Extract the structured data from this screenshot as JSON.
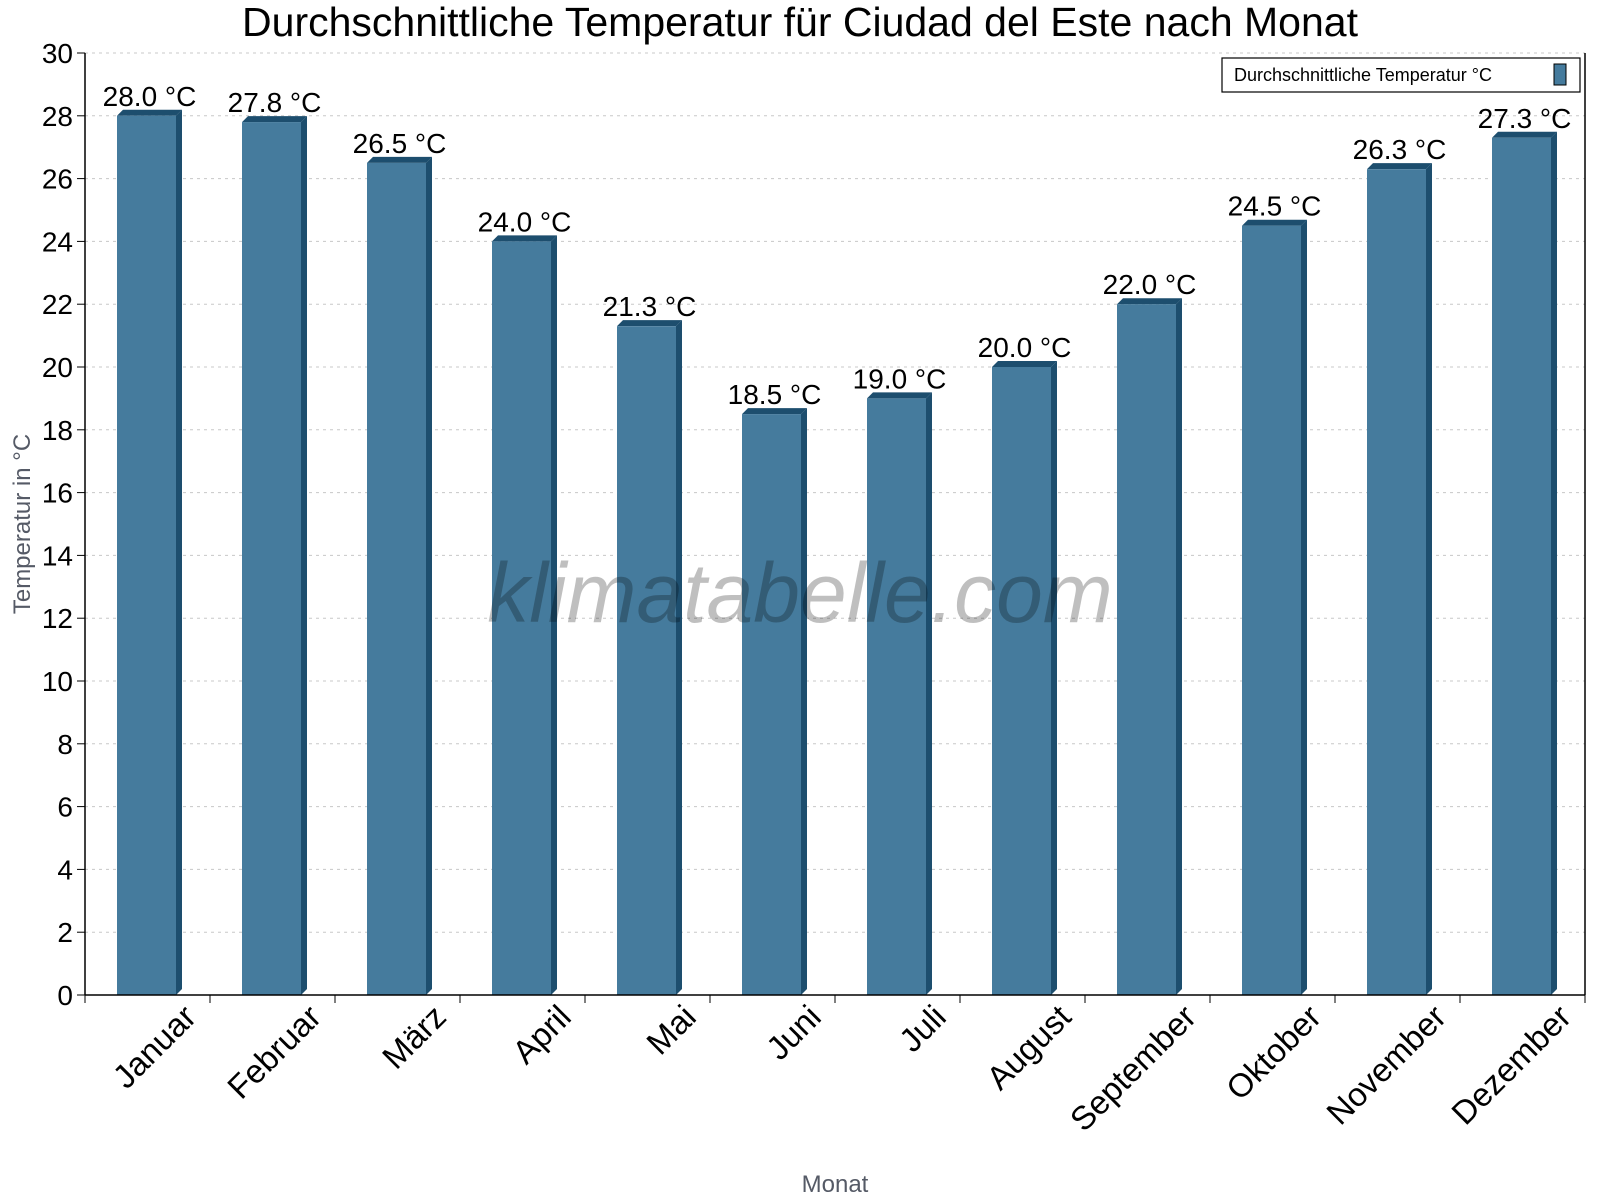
{
  "chart_data": {
    "type": "bar",
    "title": "Durchschnittliche Temperatur für Ciudad del Este nach Monat",
    "xlabel": "Monat",
    "ylabel": "Temperatur in °C",
    "categories": [
      "Januar",
      "Februar",
      "März",
      "April",
      "Mai",
      "Juni",
      "Juli",
      "August",
      "September",
      "Oktober",
      "November",
      "Dezember"
    ],
    "series": [
      {
        "name": "Durchschnittliche Temperatur °C",
        "values": [
          28.0,
          27.8,
          26.5,
          24.0,
          21.3,
          18.5,
          19.0,
          20.0,
          22.0,
          24.5,
          26.3,
          27.3
        ],
        "labels": [
          "28.0 °C",
          "27.8 °C",
          "26.5 °C",
          "24.0 °C",
          "21.3 °C",
          "18.5 °C",
          "19.0 °C",
          "20.0 °C",
          "22.0 °C",
          "24.5 °C",
          "26.3 °C",
          "27.3 °C"
        ]
      }
    ],
    "ylim": [
      0,
      30
    ],
    "yticks": [
      "0",
      "2",
      "4",
      "6",
      "8",
      "10",
      "12",
      "14",
      "16",
      "18",
      "20",
      "22",
      "24",
      "26",
      "28",
      "30"
    ],
    "grid": true,
    "legend_position": "top-right",
    "colors": {
      "bar": "#457b9d",
      "bar_side": "#1d4e6e"
    }
  },
  "watermark": "klimatabelle.com"
}
